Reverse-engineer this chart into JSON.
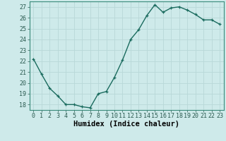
{
  "x": [
    0,
    1,
    2,
    3,
    4,
    5,
    6,
    7,
    8,
    9,
    10,
    11,
    12,
    13,
    14,
    15,
    16,
    17,
    18,
    19,
    20,
    21,
    22,
    23
  ],
  "y": [
    22.2,
    20.8,
    19.5,
    18.8,
    18.0,
    18.0,
    17.8,
    17.7,
    19.0,
    19.2,
    20.5,
    22.1,
    24.0,
    24.9,
    26.2,
    27.2,
    26.5,
    26.9,
    27.0,
    26.7,
    26.3,
    25.8,
    25.8,
    25.4
  ],
  "xlabel": "Humidex (Indice chaleur)",
  "bg_color": "#ceeaea",
  "line_color": "#1a6b5e",
  "grid_color": "#b8d8d8",
  "ylim": [
    17.5,
    27.5
  ],
  "yticks": [
    18,
    19,
    20,
    21,
    22,
    23,
    24,
    25,
    26,
    27
  ],
  "xticks": [
    0,
    1,
    2,
    3,
    4,
    5,
    6,
    7,
    8,
    9,
    10,
    11,
    12,
    13,
    14,
    15,
    16,
    17,
    18,
    19,
    20,
    21,
    22,
    23
  ],
  "marker": "+",
  "markersize": 3.5,
  "linewidth": 1.0,
  "tick_fontsize": 6.0,
  "xlabel_fontsize": 7.5
}
